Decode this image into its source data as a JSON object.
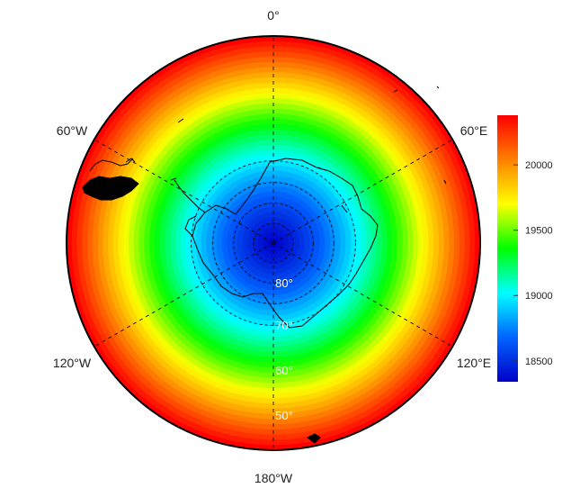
{
  "map": {
    "projection": "south-polar-stereographic",
    "longitude_labels": {
      "top": "0°",
      "upper_left": "60°W",
      "upper_right": "60°E",
      "lower_left": "120°W",
      "lower_right": "120°E",
      "bottom": "180°W"
    },
    "latitude_labels": [
      "80°",
      "70°",
      "60°",
      "50°"
    ],
    "graticule_latitudes": [
      80,
      70,
      60,
      50
    ],
    "graticule_style": "dashed",
    "field": {
      "min": 18340,
      "max": 20380,
      "pattern": "increasing-outward-from-pole"
    }
  },
  "colorbar": {
    "ticks": [
      "20000",
      "19500",
      "19000",
      "18500"
    ],
    "tick_values": [
      20000,
      19500,
      19000,
      18500
    ],
    "range": [
      18340,
      20380
    ],
    "colors": [
      "#0000c8",
      "#0064ff",
      "#00ffff",
      "#00ff00",
      "#ffff00",
      "#ff8000",
      "#ff0000"
    ]
  }
}
